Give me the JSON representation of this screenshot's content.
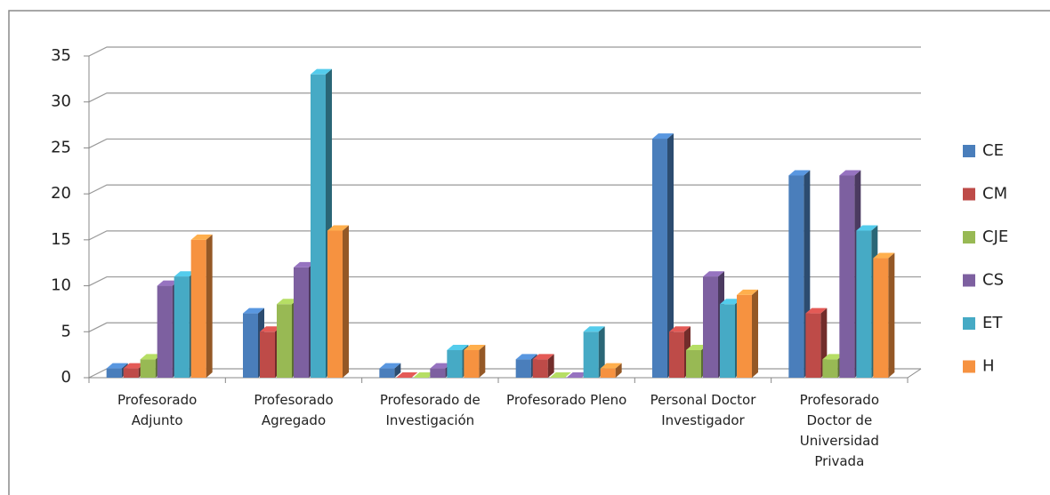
{
  "chart_data": {
    "type": "bar",
    "three_d": true,
    "legend": "right",
    "grid": true,
    "categories": [
      "Profesorado Adjunto",
      "Profesorado Agregado",
      "Profesorado de Investigación",
      "Profesorado Pleno",
      "Personal Doctor Investigador",
      "Profesorado Doctor de Universidad Privada"
    ],
    "series": [
      {
        "name": "CE",
        "color": "#4a7ebb",
        "values": [
          1,
          7,
          1,
          2,
          26,
          22
        ]
      },
      {
        "name": "CM",
        "color": "#be4b48",
        "values": [
          1,
          5,
          0,
          2,
          5,
          7
        ]
      },
      {
        "name": "CJE",
        "color": "#98b954",
        "values": [
          2,
          8,
          0,
          0,
          3,
          2
        ]
      },
      {
        "name": "CS",
        "color": "#7d60a0",
        "values": [
          10,
          12,
          1,
          0,
          11,
          22
        ]
      },
      {
        "name": "ET",
        "color": "#46aac5",
        "values": [
          11,
          33,
          3,
          5,
          8,
          16
        ]
      },
      {
        "name": "H",
        "color": "#f69240",
        "values": [
          15,
          16,
          3,
          1,
          9,
          13
        ]
      }
    ],
    "ylim": [
      0,
      35
    ],
    "yticks": [
      0,
      5,
      10,
      15,
      20,
      25,
      30,
      35
    ]
  }
}
